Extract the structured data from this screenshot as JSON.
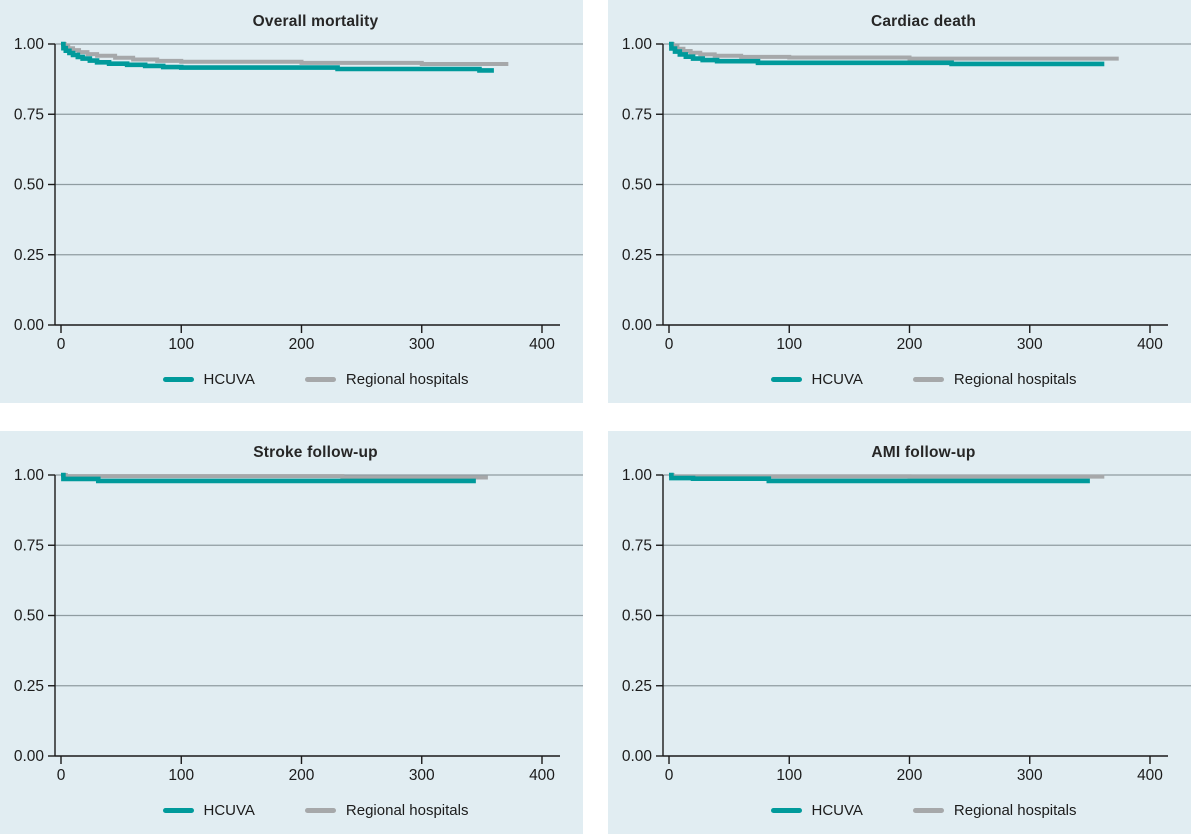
{
  "figure": {
    "kind": "kaplan-meier-survival-grid",
    "rows": 2,
    "cols": 2
  },
  "colors": {
    "hcuva": "#009a9b",
    "regional": "#a6a8aa",
    "panel_background": "#e1edf2",
    "gridline": "#8f9ca1",
    "axis": "#1a1a1a",
    "text": "#1c1c1c",
    "title": "#262626"
  },
  "axes": {
    "y_tick_labels": [
      "0.00",
      "0.25",
      "0.50",
      "0.75",
      "1.00"
    ],
    "y_tick_values": [
      0,
      0.25,
      0.5,
      0.75,
      1.0
    ],
    "x_tick_labels": [
      "0",
      "100",
      "200",
      "300",
      "400"
    ],
    "x_tick_values": [
      0,
      100,
      200,
      300,
      400
    ]
  },
  "legend": {
    "position": "bottom-center",
    "items": [
      {
        "label": "HCUVA",
        "color": "#009a9b"
      },
      {
        "label": "Regional hospitals",
        "color": "#a6a8aa"
      }
    ]
  },
  "chart_data": [
    {
      "type": "line",
      "subtype": "step-after-survival",
      "title": "Overall mortality",
      "xlim": [
        0,
        400
      ],
      "ylim": [
        0,
        1
      ],
      "grid": true,
      "legend_position": "bottom",
      "series": [
        {
          "name": "HCUVA",
          "color": "#009a9b",
          "points": [
            [
              0,
              1.0
            ],
            [
              2,
              0.985
            ],
            [
              4,
              0.976
            ],
            [
              7,
              0.968
            ],
            [
              10,
              0.961
            ],
            [
              14,
              0.954
            ],
            [
              18,
              0.948
            ],
            [
              24,
              0.941
            ],
            [
              30,
              0.935
            ],
            [
              40,
              0.93
            ],
            [
              55,
              0.926
            ],
            [
              70,
              0.922
            ],
            [
              85,
              0.918
            ],
            [
              100,
              0.916
            ],
            [
              230,
              0.911
            ],
            [
              348,
              0.906
            ],
            [
              360,
              0.906
            ]
          ]
        },
        {
          "name": "Regional hospitals",
          "color": "#a6a8aa",
          "points": [
            [
              0,
              1.0
            ],
            [
              3,
              0.992
            ],
            [
              6,
              0.985
            ],
            [
              10,
              0.978
            ],
            [
              15,
              0.971
            ],
            [
              22,
              0.964
            ],
            [
              30,
              0.958
            ],
            [
              45,
              0.951
            ],
            [
              60,
              0.945
            ],
            [
              80,
              0.94
            ],
            [
              100,
              0.937
            ],
            [
              200,
              0.933
            ],
            [
              300,
              0.929
            ],
            [
              372,
              0.929
            ]
          ]
        }
      ]
    },
    {
      "type": "line",
      "subtype": "step-after-survival",
      "title": "Cardiac death",
      "xlim": [
        0,
        400
      ],
      "ylim": [
        0,
        1
      ],
      "grid": true,
      "legend_position": "bottom",
      "series": [
        {
          "name": "HCUVA",
          "color": "#009a9b",
          "points": [
            [
              0,
              1.0
            ],
            [
              2,
              0.984
            ],
            [
              5,
              0.973
            ],
            [
              9,
              0.963
            ],
            [
              14,
              0.955
            ],
            [
              20,
              0.948
            ],
            [
              28,
              0.943
            ],
            [
              40,
              0.939
            ],
            [
              74,
              0.933
            ],
            [
              235,
              0.929
            ],
            [
              362,
              0.929
            ]
          ]
        },
        {
          "name": "Regional hospitals",
          "color": "#a6a8aa",
          "points": [
            [
              0,
              1.0
            ],
            [
              3,
              0.991
            ],
            [
              7,
              0.983
            ],
            [
              12,
              0.975
            ],
            [
              18,
              0.969
            ],
            [
              26,
              0.963
            ],
            [
              38,
              0.958
            ],
            [
              60,
              0.954
            ],
            [
              100,
              0.952
            ],
            [
              200,
              0.948
            ],
            [
              374,
              0.948
            ]
          ]
        }
      ]
    },
    {
      "type": "line",
      "subtype": "step-after-survival",
      "title": "Stroke follow-up",
      "xlim": [
        0,
        400
      ],
      "ylim": [
        0,
        1
      ],
      "grid": true,
      "legend_position": "bottom",
      "series": [
        {
          "name": "HCUVA",
          "color": "#009a9b",
          "points": [
            [
              0,
              1.0
            ],
            [
              2,
              0.986
            ],
            [
              31,
              0.979
            ],
            [
              345,
              0.979
            ]
          ]
        },
        {
          "name": "Regional hospitals",
          "color": "#a6a8aa",
          "points": [
            [
              0,
              1.0
            ],
            [
              4,
              0.996
            ],
            [
              234,
              0.991
            ],
            [
              355,
              0.991
            ]
          ]
        }
      ]
    },
    {
      "type": "line",
      "subtype": "step-after-survival",
      "title": "AMI follow-up",
      "xlim": [
        0,
        400
      ],
      "ylim": [
        0,
        1
      ],
      "grid": true,
      "legend_position": "bottom",
      "series": [
        {
          "name": "HCUVA",
          "color": "#009a9b",
          "points": [
            [
              0,
              1.0
            ],
            [
              2,
              0.989
            ],
            [
              20,
              0.987
            ],
            [
              83,
              0.979
            ],
            [
              350,
              0.979
            ]
          ]
        },
        {
          "name": "Regional hospitals",
          "color": "#a6a8aa",
          "points": [
            [
              0,
              1.0
            ],
            [
              3,
              0.995
            ],
            [
              200,
              0.994
            ],
            [
              362,
              0.994
            ]
          ]
        }
      ]
    }
  ]
}
